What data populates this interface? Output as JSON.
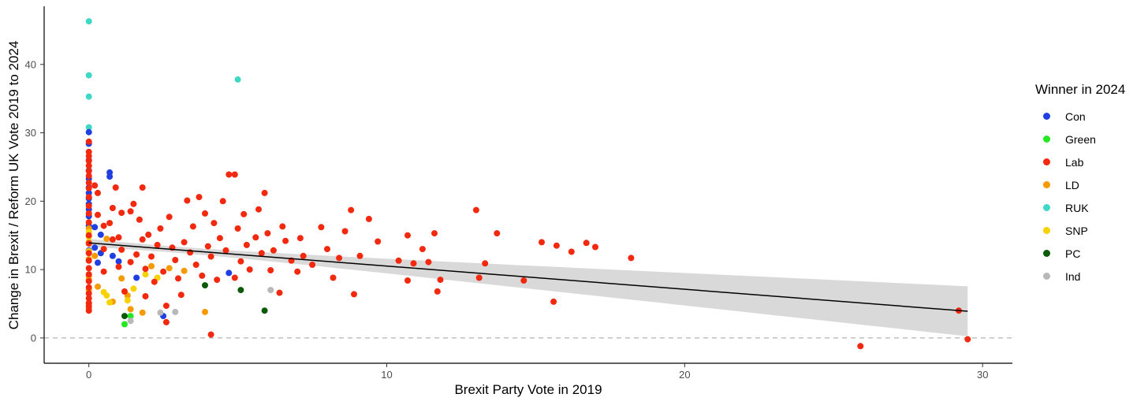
{
  "chart_data": {
    "type": "scatter",
    "xlabel": "Brexit Party Vote in 2019",
    "ylabel": "Change in Brexit / Reform UK Vote 2019 to 2024",
    "xlim": [
      -1.5,
      31
    ],
    "ylim": [
      -3.7,
      48.5
    ],
    "xticks": [
      0,
      10,
      20,
      30
    ],
    "yticks": [
      0,
      10,
      20,
      30,
      40
    ],
    "reference_line": {
      "y": 0,
      "style": "dashed"
    },
    "trend_line": {
      "method": "lm",
      "x": [
        0,
        29.5
      ],
      "y": [
        13.9,
        3.9
      ],
      "ci_upper_end": 7.6,
      "ci_lower_end": 0.3
    },
    "grid": false,
    "legend": {
      "title": "Winner in 2024",
      "position": "right",
      "entries": [
        {
          "name": "Con",
          "color": "#1f3fe0"
        },
        {
          "name": "Green",
          "color": "#23e823"
        },
        {
          "name": "Lab",
          "color": "#f2280f"
        },
        {
          "name": "LD",
          "color": "#f59a00"
        },
        {
          "name": "RUK",
          "color": "#3fd8c6"
        },
        {
          "name": "SNP",
          "color": "#f7d100"
        },
        {
          "name": "PC",
          "color": "#0a5a0a"
        },
        {
          "name": "Ind",
          "color": "#b8b8b8"
        }
      ]
    },
    "series": [
      {
        "name": "RUK",
        "points": [
          [
            0,
            46.3
          ],
          [
            0,
            38.4
          ],
          [
            0,
            35.3
          ],
          [
            0,
            30.8
          ],
          [
            5.0,
            37.8
          ]
        ]
      },
      {
        "name": "Con",
        "points": [
          [
            0,
            30.1
          ],
          [
            0,
            28.4
          ],
          [
            0,
            26.0
          ],
          [
            0,
            24.5
          ],
          [
            0,
            23.3
          ],
          [
            0,
            22.0
          ],
          [
            0,
            21.2
          ],
          [
            0,
            20.4
          ],
          [
            0,
            19.6
          ],
          [
            0,
            18.8
          ],
          [
            0,
            17.8
          ],
          [
            0,
            16.4
          ],
          [
            0,
            12.8
          ],
          [
            0.2,
            16.2
          ],
          [
            0.2,
            13.2
          ],
          [
            0.3,
            11.0
          ],
          [
            0.4,
            12.4
          ],
          [
            0.4,
            15.1
          ],
          [
            0.7,
            24.2
          ],
          [
            0.7,
            23.6
          ],
          [
            0.8,
            12.0
          ],
          [
            1.0,
            11.2
          ],
          [
            1.6,
            8.8
          ],
          [
            2.5,
            3.2
          ],
          [
            4.7,
            9.5
          ]
        ]
      },
      {
        "name": "Green",
        "points": [
          [
            1.2,
            2.0
          ],
          [
            1.4,
            3.2
          ]
        ]
      },
      {
        "name": "LD",
        "points": [
          [
            0,
            16.0
          ],
          [
            0,
            14.0
          ],
          [
            0,
            11.5
          ],
          [
            0,
            9.0
          ],
          [
            0,
            8.5
          ],
          [
            0,
            7.0
          ],
          [
            0,
            5.0
          ],
          [
            0,
            4.2
          ],
          [
            0.2,
            12.0
          ],
          [
            0.3,
            7.5
          ],
          [
            0.6,
            14.5
          ],
          [
            0.8,
            5.3
          ],
          [
            1.1,
            8.7
          ],
          [
            1.3,
            6.2
          ],
          [
            1.4,
            4.2
          ],
          [
            1.8,
            3.7
          ],
          [
            2.1,
            10.5
          ],
          [
            2.7,
            10.2
          ],
          [
            3.2,
            9.8
          ],
          [
            3.9,
            3.8
          ]
        ]
      },
      {
        "name": "SNP",
        "points": [
          [
            0,
            15.5
          ],
          [
            0,
            14.8
          ],
          [
            0,
            12.7
          ],
          [
            0.5,
            6.7
          ],
          [
            0.6,
            6.2
          ],
          [
            0.7,
            5.2
          ],
          [
            1.3,
            5.5
          ],
          [
            1.5,
            7.2
          ],
          [
            1.9,
            9.3
          ],
          [
            2.3,
            8.8
          ]
        ]
      },
      {
        "name": "PC",
        "points": [
          [
            1.2,
            3.2
          ],
          [
            3.9,
            7.7
          ],
          [
            5.1,
            7.0
          ],
          [
            5.9,
            4.0
          ]
        ]
      },
      {
        "name": "Ind",
        "points": [
          [
            1.4,
            2.5
          ],
          [
            2.4,
            3.7
          ],
          [
            2.9,
            3.8
          ],
          [
            6.1,
            7.0
          ]
        ]
      },
      {
        "name": "Lab",
        "points": [
          [
            0,
            28.7
          ],
          [
            0,
            27.2
          ],
          [
            0,
            26.6
          ],
          [
            0,
            25.9
          ],
          [
            0,
            25.2
          ],
          [
            0,
            24.4
          ],
          [
            0,
            23.7
          ],
          [
            0,
            22.7
          ],
          [
            0,
            21.9
          ],
          [
            0,
            20.6
          ],
          [
            0,
            19.3
          ],
          [
            0,
            18.2
          ],
          [
            0,
            16.9
          ],
          [
            0,
            15.0
          ],
          [
            0,
            13.8
          ],
          [
            0,
            12.4
          ],
          [
            0,
            11.3
          ],
          [
            0,
            10.2
          ],
          [
            0,
            9.3
          ],
          [
            0,
            8.3
          ],
          [
            0,
            7.4
          ],
          [
            0,
            6.5
          ],
          [
            0,
            5.8
          ],
          [
            0,
            5.1
          ],
          [
            0,
            4.6
          ],
          [
            0,
            4.0
          ],
          [
            0.2,
            22.3
          ],
          [
            0.3,
            21.2
          ],
          [
            0.3,
            18.0
          ],
          [
            0.5,
            16.4
          ],
          [
            0.5,
            13.0
          ],
          [
            0.5,
            9.7
          ],
          [
            0.7,
            16.8
          ],
          [
            0.8,
            19.0
          ],
          [
            0.8,
            14.4
          ],
          [
            0.9,
            22.0
          ],
          [
            1.0,
            14.7
          ],
          [
            1.0,
            10.4
          ],
          [
            1.1,
            18.3
          ],
          [
            1.1,
            12.9
          ],
          [
            1.2,
            6.8
          ],
          [
            1.4,
            18.5
          ],
          [
            1.4,
            11.1
          ],
          [
            1.5,
            19.6
          ],
          [
            1.6,
            12.2
          ],
          [
            1.7,
            17.3
          ],
          [
            1.8,
            22.0
          ],
          [
            1.8,
            14.4
          ],
          [
            1.9,
            10.1
          ],
          [
            1.9,
            6.1
          ],
          [
            2.0,
            15.1
          ],
          [
            2.1,
            11.9
          ],
          [
            2.2,
            8.2
          ],
          [
            2.3,
            13.6
          ],
          [
            2.4,
            16.0
          ],
          [
            2.5,
            9.7
          ],
          [
            2.6,
            4.7
          ],
          [
            2.6,
            2.3
          ],
          [
            2.7,
            17.7
          ],
          [
            2.8,
            13.2
          ],
          [
            2.9,
            11.4
          ],
          [
            3.0,
            8.7
          ],
          [
            3.1,
            6.3
          ],
          [
            3.2,
            14.0
          ],
          [
            3.3,
            20.1
          ],
          [
            3.4,
            12.5
          ],
          [
            3.5,
            16.3
          ],
          [
            3.6,
            10.7
          ],
          [
            3.7,
            20.6
          ],
          [
            3.8,
            9.1
          ],
          [
            3.9,
            18.2
          ],
          [
            4.0,
            13.4
          ],
          [
            4.1,
            11.9
          ],
          [
            4.1,
            0.5
          ],
          [
            4.2,
            16.8
          ],
          [
            4.3,
            8.5
          ],
          [
            4.4,
            14.6
          ],
          [
            4.5,
            20.0
          ],
          [
            4.6,
            12.8
          ],
          [
            4.7,
            23.9
          ],
          [
            4.9,
            23.9
          ],
          [
            4.9,
            8.8
          ],
          [
            5.0,
            16.0
          ],
          [
            5.1,
            11.2
          ],
          [
            5.2,
            18.1
          ],
          [
            5.3,
            13.6
          ],
          [
            5.4,
            10.0
          ],
          [
            5.6,
            14.7
          ],
          [
            5.7,
            18.8
          ],
          [
            5.8,
            12.4
          ],
          [
            5.9,
            21.2
          ],
          [
            6.0,
            15.3
          ],
          [
            6.1,
            9.9
          ],
          [
            6.2,
            12.8
          ],
          [
            6.4,
            6.6
          ],
          [
            6.5,
            16.3
          ],
          [
            6.6,
            14.2
          ],
          [
            6.8,
            11.3
          ],
          [
            7.0,
            9.7
          ],
          [
            7.1,
            14.6
          ],
          [
            7.2,
            12.0
          ],
          [
            7.5,
            10.7
          ],
          [
            7.8,
            16.2
          ],
          [
            8.0,
            13.0
          ],
          [
            8.2,
            8.8
          ],
          [
            8.4,
            11.7
          ],
          [
            8.6,
            15.6
          ],
          [
            8.8,
            18.7
          ],
          [
            8.9,
            6.4
          ],
          [
            9.1,
            12.0
          ],
          [
            9.4,
            17.4
          ],
          [
            9.7,
            14.1
          ],
          [
            10.4,
            11.3
          ],
          [
            10.7,
            8.4
          ],
          [
            10.7,
            15.0
          ],
          [
            10.9,
            10.9
          ],
          [
            11.2,
            13.0
          ],
          [
            11.4,
            11.1
          ],
          [
            11.6,
            15.3
          ],
          [
            11.7,
            6.8
          ],
          [
            11.8,
            8.5
          ],
          [
            13.0,
            18.7
          ],
          [
            13.1,
            8.8
          ],
          [
            13.3,
            10.9
          ],
          [
            13.7,
            15.3
          ],
          [
            14.6,
            8.4
          ],
          [
            15.2,
            14.0
          ],
          [
            15.6,
            5.3
          ],
          [
            15.7,
            13.5
          ],
          [
            16.2,
            12.6
          ],
          [
            16.7,
            13.9
          ],
          [
            17.0,
            13.3
          ],
          [
            18.2,
            11.7
          ],
          [
            25.9,
            -1.2
          ],
          [
            29.2,
            4.0
          ],
          [
            29.5,
            -0.2
          ]
        ]
      }
    ]
  }
}
